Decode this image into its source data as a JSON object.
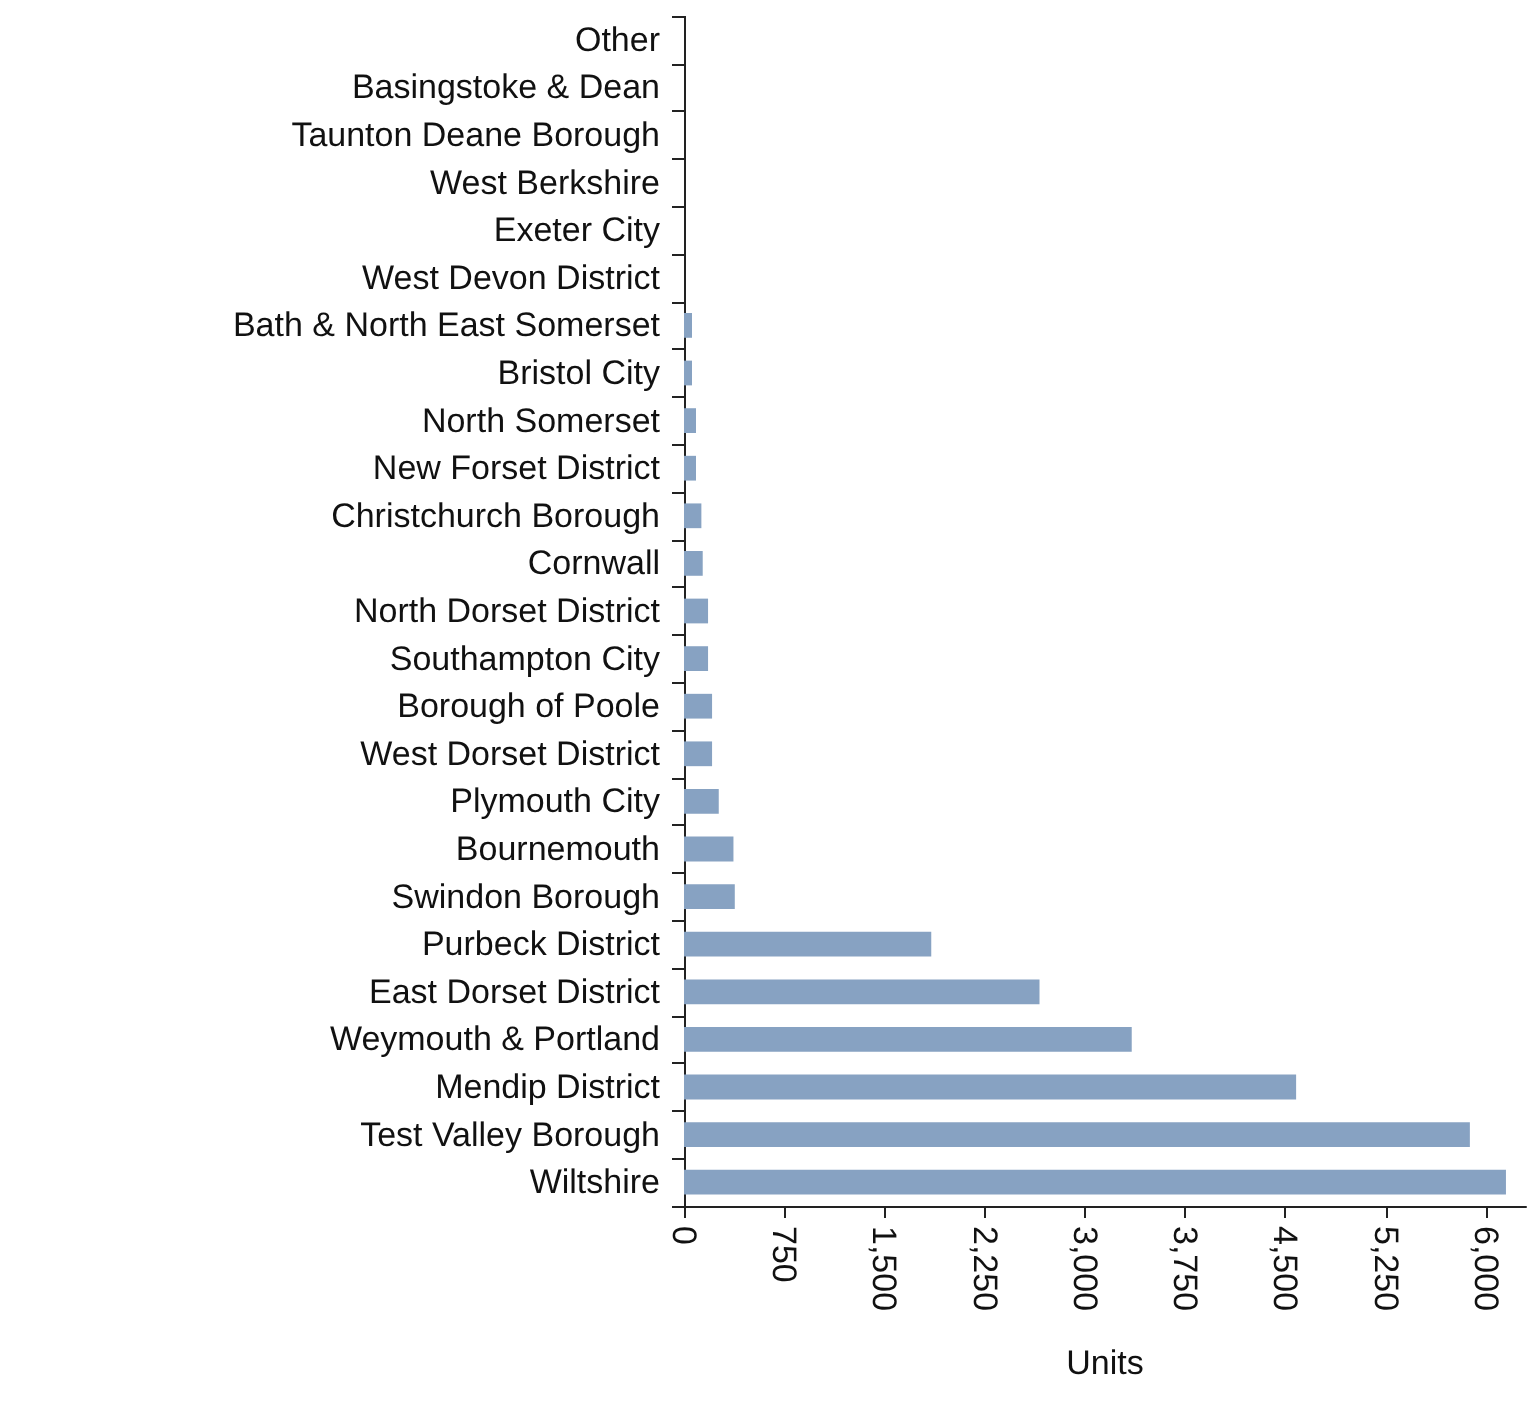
{
  "chart_data": {
    "type": "bar",
    "orientation": "horizontal",
    "xlabel": "Units",
    "categories": [
      "Other",
      "Basingstoke & Dean",
      "Taunton Deane Borough",
      "West Berkshire",
      "Exeter City",
      "West Devon District",
      "Bath & North East Somerset",
      "Bristol City",
      "North Somerset",
      "New Forset District",
      "Christchurch Borough",
      "Cornwall",
      "North Dorset District",
      "Southampton City",
      "Borough of Poole",
      "West Dorset District",
      "Plymouth City",
      "Bournemouth",
      "Swindon Borough",
      "Purbeck District",
      "East Dorset District",
      "Weymouth & Portland",
      "Mendip District",
      "Test Valley Borough",
      "Wiltshire"
    ],
    "values": [
      0,
      0,
      0,
      0,
      0,
      0,
      60,
      60,
      90,
      90,
      130,
      140,
      180,
      180,
      210,
      210,
      260,
      370,
      380,
      1850,
      2660,
      3350,
      4580,
      5880,
      6150
    ],
    "color": "#87a2c2",
    "xlim": [
      0,
      6300
    ],
    "xticks": [
      0,
      750,
      {
        "value": 1500,
        "label": "1,500"
      },
      {
        "value": 2250,
        "label": "2,250"
      },
      {
        "value": 3000,
        "label": "3,000"
      },
      {
        "value": 3750,
        "label": "3,750"
      },
      {
        "value": 4500,
        "label": "4,500"
      },
      {
        "value": 5250,
        "label": "5,250"
      },
      {
        "value": 6000,
        "label": "6,000"
      }
    ],
    "grid": false
  }
}
